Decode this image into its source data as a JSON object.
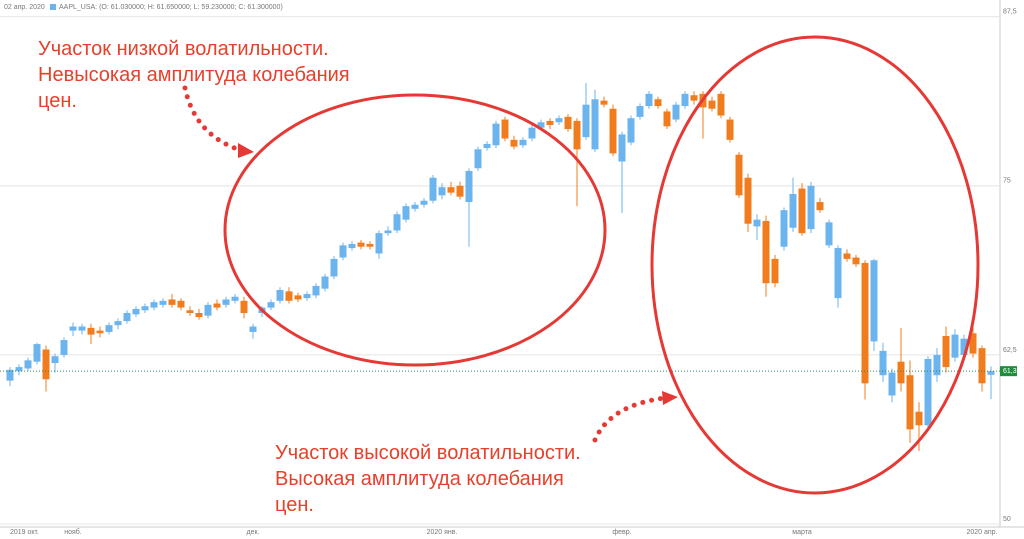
{
  "chart_data": {
    "type": "candlestick",
    "header_date": "02 апр. 2020",
    "legend_text": "AAPL_USA: (O: 61.030000; H: 61.650000; L: 59.230000; C: 61.300000)",
    "up_color": "#6cb4ee",
    "down_color": "#f07c1e",
    "grid": true,
    "ylim": [
      50,
      88
    ],
    "yticks": [
      {
        "value": 87.5,
        "label": "87,5"
      },
      75,
      {
        "value": 62.5,
        "label": "62,5"
      },
      50
    ],
    "last_price": {
      "value": 61.3,
      "label": "61,3"
    },
    "annotations": [
      {
        "lines": [
          "Участок низкой волатильности.",
          "Невысокая амплитуда колебания",
          "цен."
        ]
      },
      {
        "lines": [
          "Участок высокой волатильности.",
          "Высокая амплитуда колебания",
          "цен."
        ]
      }
    ],
    "categories": [
      "2019 окт.",
      null,
      null,
      null,
      null,
      null,
      null,
      "нояб.",
      null,
      null,
      null,
      null,
      null,
      null,
      null,
      null,
      null,
      null,
      null,
      null,
      null,
      null,
      null,
      null,
      null,
      null,
      null,
      "дек.",
      null,
      null,
      null,
      null,
      null,
      null,
      null,
      null,
      null,
      null,
      null,
      null,
      null,
      null,
      null,
      null,
      null,
      null,
      null,
      null,
      "2020 янв.",
      null,
      null,
      null,
      null,
      null,
      null,
      null,
      null,
      null,
      null,
      null,
      null,
      null,
      null,
      null,
      null,
      null,
      null,
      null,
      "февр.",
      null,
      null,
      null,
      null,
      null,
      null,
      null,
      null,
      null,
      null,
      null,
      null,
      null,
      null,
      null,
      null,
      null,
      null,
      null,
      "марта",
      null,
      null,
      null,
      null,
      null,
      null,
      null,
      null,
      null,
      null,
      null,
      null,
      null,
      null,
      null,
      null,
      null,
      null,
      null,
      "2020 апр.",
      null
    ],
    "ohlc": [
      [
        60.6,
        61.6,
        60.2,
        61.4
      ],
      [
        61.3,
        61.8,
        61.0,
        61.6
      ],
      [
        61.5,
        62.3,
        61.3,
        62.1
      ],
      [
        62.0,
        63.4,
        61.8,
        63.3
      ],
      [
        62.9,
        63.2,
        59.8,
        60.7
      ],
      [
        61.9,
        62.6,
        61.2,
        62.4
      ],
      [
        62.5,
        63.8,
        62.3,
        63.6
      ],
      [
        64.3,
        64.9,
        63.9,
        64.6
      ],
      [
        64.3,
        64.8,
        64.0,
        64.6
      ],
      [
        64.5,
        64.8,
        63.3,
        64.0
      ],
      [
        64.3,
        64.6,
        63.8,
        64.1
      ],
      [
        64.2,
        64.9,
        64.0,
        64.7
      ],
      [
        64.7,
        65.2,
        64.4,
        65.0
      ],
      [
        65.0,
        65.8,
        64.8,
        65.6
      ],
      [
        65.5,
        66.1,
        65.3,
        65.9
      ],
      [
        65.8,
        66.3,
        65.6,
        66.1
      ],
      [
        66.0,
        66.6,
        65.8,
        66.4
      ],
      [
        66.2,
        66.7,
        66.0,
        66.5
      ],
      [
        66.6,
        67.0,
        66.0,
        66.2
      ],
      [
        66.5,
        66.7,
        65.8,
        66.0
      ],
      [
        65.8,
        66.1,
        65.4,
        65.6
      ],
      [
        65.6,
        65.9,
        65.1,
        65.3
      ],
      [
        65.4,
        66.4,
        65.2,
        66.2
      ],
      [
        66.3,
        66.6,
        65.8,
        66.0
      ],
      [
        66.2,
        66.8,
        66.0,
        66.6
      ],
      [
        66.5,
        67.0,
        66.3,
        66.8
      ],
      [
        66.5,
        66.8,
        65.2,
        65.6
      ],
      [
        64.2,
        64.8,
        63.7,
        64.6
      ],
      [
        65.6,
        66.1,
        65.3,
        66.0
      ],
      [
        66.0,
        66.6,
        65.8,
        66.4
      ],
      [
        66.5,
        67.5,
        66.3,
        67.3
      ],
      [
        67.2,
        67.5,
        66.3,
        66.5
      ],
      [
        66.9,
        67.1,
        66.4,
        66.6
      ],
      [
        66.7,
        67.2,
        66.5,
        67.0
      ],
      [
        66.9,
        67.8,
        66.7,
        67.6
      ],
      [
        67.4,
        68.5,
        67.2,
        68.3
      ],
      [
        68.3,
        69.8,
        68.1,
        69.6
      ],
      [
        69.7,
        70.8,
        69.5,
        70.6
      ],
      [
        70.4,
        70.9,
        70.2,
        70.7
      ],
      [
        70.8,
        71.0,
        70.3,
        70.5
      ],
      [
        70.7,
        70.9,
        70.3,
        70.5
      ],
      [
        70.0,
        71.7,
        69.6,
        71.5
      ],
      [
        71.5,
        72.0,
        71.3,
        71.7
      ],
      [
        71.7,
        73.1,
        71.5,
        72.9
      ],
      [
        72.5,
        73.7,
        72.3,
        73.5
      ],
      [
        73.3,
        73.8,
        73.1,
        73.6
      ],
      [
        73.6,
        74.1,
        73.4,
        73.9
      ],
      [
        73.9,
        75.8,
        73.7,
        75.6
      ],
      [
        74.3,
        75.2,
        74.0,
        74.9
      ],
      [
        74.9,
        75.3,
        74.3,
        74.5
      ],
      [
        75.0,
        75.3,
        74.0,
        74.2
      ],
      [
        73.8,
        76.3,
        70.5,
        76.1
      ],
      [
        76.3,
        77.9,
        76.1,
        77.7
      ],
      [
        77.8,
        78.3,
        77.6,
        78.1
      ],
      [
        78.0,
        79.8,
        77.8,
        79.6
      ],
      [
        79.9,
        80.1,
        78.3,
        78.5
      ],
      [
        78.4,
        78.7,
        77.7,
        77.9
      ],
      [
        78.0,
        78.6,
        77.8,
        78.4
      ],
      [
        78.5,
        79.5,
        78.3,
        79.3
      ],
      [
        79.3,
        79.9,
        79.1,
        79.7
      ],
      [
        79.8,
        80.0,
        79.2,
        79.5
      ],
      [
        79.7,
        80.2,
        79.5,
        80.0
      ],
      [
        80.1,
        80.3,
        79.0,
        79.2
      ],
      [
        79.8,
        80.0,
        73.5,
        77.7
      ],
      [
        78.6,
        82.6,
        78.4,
        81.0
      ],
      [
        77.7,
        82.1,
        77.5,
        81.4
      ],
      [
        81.3,
        81.6,
        80.8,
        81.0
      ],
      [
        80.7,
        81.0,
        77.2,
        77.4
      ],
      [
        76.8,
        79.0,
        73.0,
        78.8
      ],
      [
        78.2,
        80.2,
        78.0,
        80.0
      ],
      [
        80.1,
        81.1,
        79.9,
        80.9
      ],
      [
        80.9,
        82.0,
        80.7,
        81.8
      ],
      [
        81.4,
        81.6,
        80.7,
        80.9
      ],
      [
        80.5,
        80.7,
        79.2,
        79.4
      ],
      [
        79.9,
        81.2,
        79.7,
        81.0
      ],
      [
        80.9,
        82.0,
        80.7,
        81.8
      ],
      [
        81.7,
        82.0,
        81.0,
        81.3
      ],
      [
        81.8,
        82.0,
        78.5,
        80.8
      ],
      [
        81.3,
        81.6,
        80.5,
        80.7
      ],
      [
        81.8,
        82.0,
        80.0,
        80.2
      ],
      [
        79.9,
        80.1,
        78.2,
        78.4
      ],
      [
        77.3,
        77.5,
        74.1,
        74.3
      ],
      [
        75.6,
        75.9,
        71.6,
        72.2
      ],
      [
        72.0,
        72.9,
        71.0,
        72.5
      ],
      [
        72.4,
        72.8,
        66.8,
        67.8
      ],
      [
        69.6,
        69.9,
        67.5,
        67.8
      ],
      [
        70.5,
        73.4,
        70.2,
        73.2
      ],
      [
        71.9,
        75.6,
        71.6,
        74.4
      ],
      [
        74.8,
        75.2,
        71.3,
        71.5
      ],
      [
        71.8,
        75.3,
        71.5,
        75.0
      ],
      [
        73.8,
        74.1,
        73.0,
        73.2
      ],
      [
        70.6,
        72.5,
        70.4,
        72.3
      ],
      [
        66.7,
        70.6,
        66.0,
        70.4
      ],
      [
        70.0,
        70.3,
        69.4,
        69.6
      ],
      [
        69.7,
        69.9,
        69.0,
        69.2
      ],
      [
        69.3,
        69.5,
        59.2,
        60.4
      ],
      [
        63.5,
        69.6,
        62.8,
        69.5
      ],
      [
        61.0,
        63.4,
        60.5,
        62.8
      ],
      [
        59.5,
        61.5,
        59.0,
        61.2
      ],
      [
        62.0,
        64.5,
        59.8,
        60.4
      ],
      [
        61.0,
        62.1,
        56.0,
        57.0
      ],
      [
        58.3,
        59.0,
        55.4,
        57.3
      ],
      [
        57.3,
        62.4,
        57.0,
        62.2
      ],
      [
        61.0,
        63.0,
        60.5,
        62.5
      ],
      [
        63.9,
        64.6,
        61.2,
        61.6
      ],
      [
        62.3,
        64.4,
        62.0,
        64.0
      ],
      [
        62.5,
        64.0,
        62.2,
        63.7
      ],
      [
        64.1,
        64.8,
        62.3,
        62.6
      ],
      [
        63.0,
        63.2,
        59.8,
        60.4
      ],
      [
        61.03,
        61.65,
        59.23,
        61.3
      ]
    ]
  }
}
